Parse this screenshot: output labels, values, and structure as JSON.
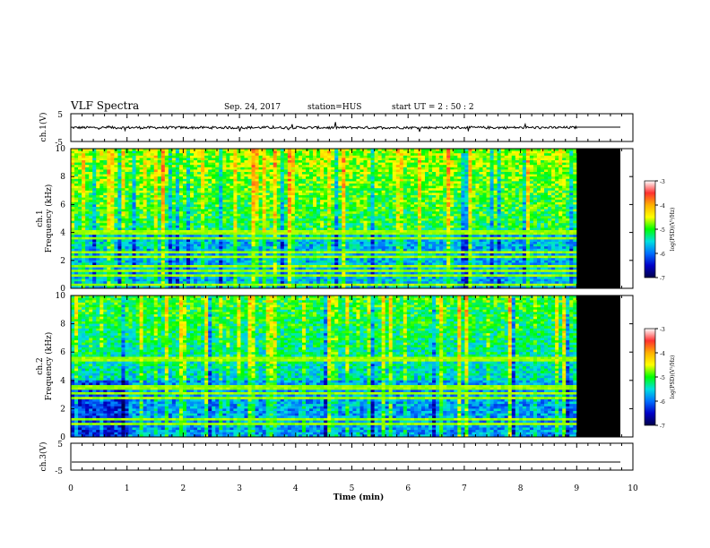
{
  "header": {
    "title": "VLF Spectra",
    "date": "Sep. 24, 2017",
    "station": "station=HUS",
    "start_time": "start  UT  =   2  : 50 : 2"
  },
  "panels": {
    "ch1_waveform": {
      "ylabel": "ch.1(V)",
      "ytick_top": "5",
      "ytick_bottom": "-5"
    },
    "ch1_spectrogram": {
      "ylabel_line1": "ch.1",
      "ylabel_line2": "Frequency  (kHz)"
    },
    "ch2_spectrogram": {
      "ylabel_line1": "ch.2",
      "ylabel_line2": "Frequency  (kHz)"
    },
    "ch3_waveform": {
      "ylabel": "ch.3(V)",
      "ytick_top": "5",
      "ytick_bottom": "-5"
    }
  },
  "colorbar": {
    "label": "log(PSD)(V²/Hz)",
    "ticks": [
      "-3",
      "-4",
      "-5",
      "-6",
      "-7"
    ],
    "colors": [
      "#ffffff",
      "#ff3030",
      "#ffb000",
      "#ffff00",
      "#00ff00",
      "#00e0e0",
      "#0070ff",
      "#0000c8",
      "#00004a"
    ]
  },
  "chart_data": [
    {
      "type": "line",
      "name": "ch1-waveform",
      "ylabel": "ch.1(V)",
      "xlim": [
        0,
        10
      ],
      "ylim": [
        -5,
        5
      ],
      "note_level": 0,
      "data_end_min": 9
    },
    {
      "type": "heatmap",
      "name": "ch1-spectrogram",
      "xlabel": "",
      "ylabel": "Frequency  (kHz)",
      "xlim": [
        0,
        10
      ],
      "ylim": [
        0,
        10
      ],
      "yticks": [
        "0",
        "2",
        "4",
        "6",
        "8",
        "10"
      ],
      "data_end_min": 9,
      "color_range": [
        -7,
        -3
      ],
      "lines_khz": [
        0.3,
        0.9,
        1.2,
        1.6,
        2.3,
        2.6,
        3.6,
        4.0
      ]
    },
    {
      "type": "heatmap",
      "name": "ch2-spectrogram",
      "xlabel": "",
      "ylabel": "Frequency  (kHz)",
      "xlim": [
        0,
        10
      ],
      "ylim": [
        0,
        10
      ],
      "yticks": [
        "0",
        "2",
        "4",
        "6",
        "8",
        "10"
      ],
      "data_end_min": 9,
      "color_range": [
        -7,
        -3
      ],
      "lines_khz": [
        0.9,
        1.3,
        2.7,
        3.1,
        3.5,
        5.5
      ]
    },
    {
      "type": "line",
      "name": "ch3-waveform",
      "ylabel": "ch.3(V)",
      "xlim": [
        0,
        10
      ],
      "ylim": [
        -5,
        5
      ],
      "level": -2
    }
  ],
  "xaxis": {
    "label": "Time  (min)",
    "ticks": [
      "0",
      "1",
      "2",
      "3",
      "4",
      "5",
      "6",
      "7",
      "8",
      "9",
      "10"
    ]
  }
}
